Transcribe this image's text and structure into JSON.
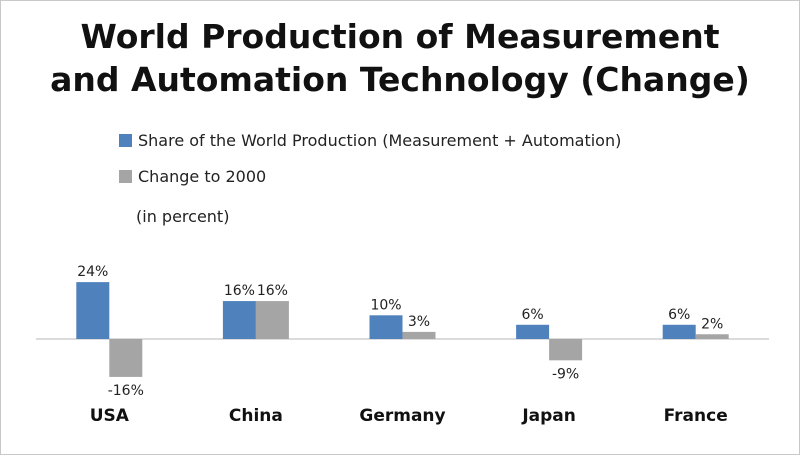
{
  "chart_data": {
    "type": "bar",
    "title_lines": [
      "World Production of Measurement",
      "and Automation Technology (Change)"
    ],
    "note": "(in percent)",
    "categories": [
      "USA",
      "China",
      "Germany",
      "Japan",
      "France"
    ],
    "series": [
      {
        "name": "Share of the World Production (Measurement + Automation)",
        "values": [
          24,
          16,
          10,
          6,
          6
        ],
        "labels": [
          "24%",
          "16%",
          "10%",
          "6%",
          "6%"
        ],
        "color": "#4f81bd"
      },
      {
        "name": "Change to 2000",
        "values": [
          -16,
          16,
          3,
          -9,
          2
        ],
        "labels": [
          "-16%",
          "16%",
          "3%",
          "-9%",
          "2%"
        ],
        "color": "#a5a5a5"
      }
    ],
    "ylim": [
      -20,
      30
    ],
    "grid": false,
    "legend_position": "top-left"
  }
}
